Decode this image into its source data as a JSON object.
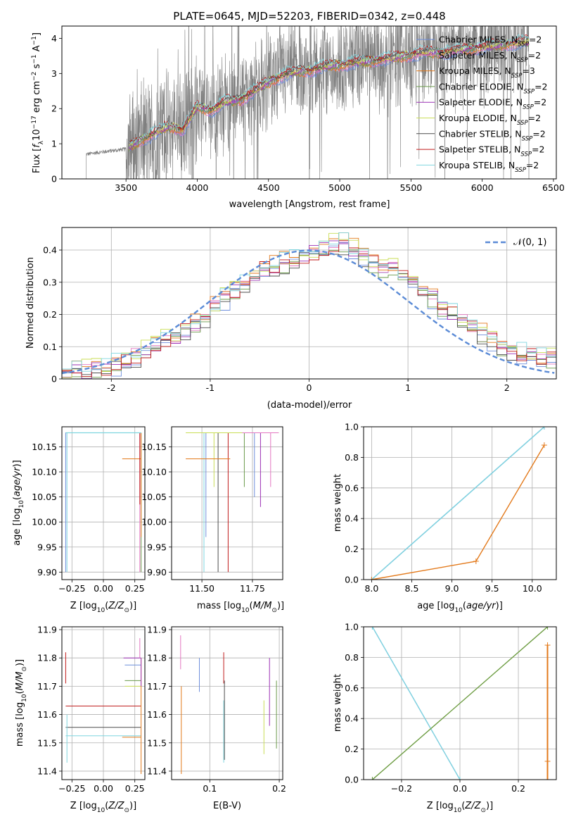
{
  "figure": {
    "title": "PLATE=0645, MJD=52203, FIBERID=0342, z=0.448"
  },
  "colors": {
    "chabrier_miles": "#6f8fdc",
    "salpeter_miles": "#e377c2",
    "kroupa_miles": "#e37a1c",
    "chabrier_elodie": "#6a9a4a",
    "salpeter_elodie": "#9b30b5",
    "kroupa_elodie": "#c9de56",
    "chabrier_stelib": "#4d4d4d",
    "salpeter_stelib": "#c01a1a",
    "kroupa_stelib": "#7fd6df",
    "data_spectrum": "#7f7f7f",
    "normal_curve": "#5b8bd6",
    "grid": "#b0b0b0"
  },
  "chart_data": [
    {
      "id": "spectrum",
      "type": "line",
      "xlabel": "wavelength [Angstrom, rest frame]",
      "ylabel": "Flux [f_λ 10^-17 erg cm^-2 s^-1 A^-1]",
      "xlim": [
        3050,
        6520
      ],
      "ylim": [
        0,
        4.35
      ],
      "xticks": [
        3500,
        4000,
        4500,
        5000,
        5500,
        6000,
        6500
      ],
      "yticks": [
        0,
        1,
        2,
        3,
        4
      ],
      "grid": false,
      "legend_position": "top-right",
      "legend": [
        {
          "label": "Chabrier MILES, N",
          "sub": "SSP",
          "suffix": "=2",
          "color_key": "chabrier_miles"
        },
        {
          "label": "Salpeter MILES, N",
          "sub": "SSP",
          "suffix": "=2",
          "color_key": "salpeter_miles"
        },
        {
          "label": "Kroupa MILES, N",
          "sub": "SSP",
          "suffix": "=3",
          "color_key": "kroupa_miles"
        },
        {
          "label": "Chabrier ELODIE, N",
          "sub": "SSP",
          "suffix": "=2",
          "color_key": "chabrier_elodie"
        },
        {
          "label": "Salpeter ELODIE, N",
          "sub": "SSP",
          "suffix": "=2",
          "color_key": "salpeter_elodie"
        },
        {
          "label": "Kroupa ELODIE, N",
          "sub": "SSP",
          "suffix": "=2",
          "color_key": "kroupa_elodie"
        },
        {
          "label": "Chabrier STELIB, N",
          "sub": "SSP",
          "suffix": "=2",
          "color_key": "chabrier_stelib"
        },
        {
          "label": "Salpeter STELIB, N",
          "sub": "SSP",
          "suffix": "=2",
          "color_key": "salpeter_stelib"
        },
        {
          "label": "Kroupa STELIB, N",
          "sub": "SSP",
          "suffix": "=2",
          "color_key": "kroupa_stelib"
        }
      ],
      "model_continuum": {
        "x": [
          3220,
          3300,
          3400,
          3500,
          3600,
          3700,
          3800,
          3900,
          4000,
          4100,
          4200,
          4300,
          4400,
          4500,
          4600,
          4700,
          4800,
          4900,
          5000,
          5100,
          5200,
          5300,
          5400,
          5500,
          5600,
          5700,
          5800,
          5900,
          6000,
          6100,
          6200,
          6300
        ],
        "y": [
          0.7,
          0.75,
          0.8,
          0.85,
          1.1,
          1.3,
          1.5,
          1.4,
          2.05,
          1.95,
          2.2,
          2.25,
          2.5,
          2.75,
          2.95,
          3.05,
          3.1,
          3.2,
          3.25,
          3.3,
          3.35,
          3.4,
          3.45,
          3.55,
          3.6,
          3.6,
          3.65,
          3.7,
          3.75,
          3.8,
          3.85,
          3.9
        ]
      },
      "data_noise_note": "noisy observed spectrum around the model continuum"
    },
    {
      "id": "residuals",
      "type": "line",
      "xlabel": "(data-model)/error",
      "ylabel": "Normed distribution",
      "xlim": [
        -2.5,
        2.5
      ],
      "ylim": [
        0,
        0.47
      ],
      "xticks": [
        -2,
        -1,
        0,
        1,
        2
      ],
      "yticks": [
        0.0,
        0.1,
        0.2,
        0.3,
        0.4
      ],
      "grid": true,
      "legend_position": "top-right",
      "legend_label": "𝒩(0, 1)",
      "hist_edges": [
        -2.5,
        -2.4,
        -2.3,
        -2.2,
        -2.1,
        -2.0,
        -1.9,
        -1.8,
        -1.7,
        -1.6,
        -1.5,
        -1.4,
        -1.3,
        -1.2,
        -1.1,
        -1.0,
        -0.9,
        -0.8,
        -0.7,
        -0.6,
        -0.5,
        -0.4,
        -0.3,
        -0.2,
        -0.1,
        0.0,
        0.1,
        0.2,
        0.3,
        0.4,
        0.5,
        0.6,
        0.7,
        0.8,
        0.9,
        1.0,
        1.1,
        1.2,
        1.3,
        1.4,
        1.5,
        1.6,
        1.7,
        1.8,
        1.9,
        2.0,
        2.1,
        2.2,
        2.3,
        2.4,
        2.5
      ],
      "hist_base": [
        0.015,
        0.02,
        0.025,
        0.03,
        0.035,
        0.045,
        0.06,
        0.07,
        0.09,
        0.1,
        0.12,
        0.13,
        0.15,
        0.17,
        0.19,
        0.22,
        0.25,
        0.27,
        0.3,
        0.32,
        0.34,
        0.35,
        0.36,
        0.37,
        0.38,
        0.39,
        0.4,
        0.42,
        0.42,
        0.4,
        0.38,
        0.36,
        0.35,
        0.34,
        0.32,
        0.3,
        0.28,
        0.25,
        0.22,
        0.2,
        0.18,
        0.16,
        0.14,
        0.12,
        0.1,
        0.09,
        0.08,
        0.07,
        0.06,
        0.06
      ]
    },
    {
      "id": "age-vs-Z",
      "type": "line",
      "xlabel": "Z [log10(Z/Z⊙)]",
      "ylabel": "age [log10(age/yr)]",
      "xlim": [
        -0.33,
        0.33
      ],
      "ylim": [
        9.885,
        10.19
      ],
      "xticks": [
        -0.25,
        0.0,
        0.25
      ],
      "xtick_labels": [
        "−0.25",
        "0.00",
        "0.25"
      ],
      "yticks": [
        9.9,
        9.95,
        10.0,
        10.05,
        10.1,
        10.15
      ],
      "ytick_labels": [
        "9.90",
        "9.95",
        "10.00",
        "10.05",
        "10.10",
        "10.15"
      ],
      "grid": true
    },
    {
      "id": "age-vs-mass",
      "type": "line",
      "xlabel": "mass [log10(M/M⊙)]",
      "ylabel": "",
      "xlim": [
        11.35,
        11.9
      ],
      "ylim": [
        9.885,
        10.19
      ],
      "xticks": [
        11.5,
        11.75
      ],
      "xtick_labels": [
        "11.50",
        "11.75"
      ],
      "yticks": [
        9.9,
        9.95,
        10.0,
        10.05,
        10.1,
        10.15
      ],
      "ytick_labels": [
        "9.90",
        "9.95",
        "10.00",
        "10.05",
        "10.10",
        "10.15"
      ],
      "grid": true
    },
    {
      "id": "massweight-vs-age",
      "type": "line",
      "xlabel": "age [log10(age/yr)]",
      "ylabel": "mass weight",
      "xlim": [
        7.9,
        10.3
      ],
      "ylim": [
        0,
        1.0
      ],
      "xticks": [
        8.0,
        8.5,
        9.0,
        9.5,
        10.0
      ],
      "xtick_labels": [
        "8.0",
        "8.5",
        "9.0",
        "9.5",
        "10.0"
      ],
      "yticks": [
        0.0,
        0.2,
        0.4,
        0.6,
        0.8,
        1.0
      ],
      "ytick_labels": [
        "0.0",
        "0.2",
        "0.4",
        "0.6",
        "0.8",
        "1.0"
      ],
      "grid": true,
      "series": [
        {
          "color_key": "chabrier_miles",
          "x": [
            8.0,
            10.15
          ],
          "y": [
            0.0,
            1.0
          ]
        },
        {
          "color_key": "kroupa_stelib",
          "x": [
            8.0,
            10.15
          ],
          "y": [
            0.0,
            1.0
          ]
        },
        {
          "color_key": "kroupa_miles",
          "x": [
            8.0,
            9.3,
            10.15
          ],
          "y": [
            0.0,
            0.12,
            0.88
          ]
        }
      ]
    },
    {
      "id": "mass-vs-Z",
      "type": "line",
      "xlabel": "Z [log10(Z/Z⊙)]",
      "ylabel": "mass [log10(M/M⊙)]",
      "xlim": [
        -0.33,
        0.33
      ],
      "ylim": [
        11.37,
        11.91
      ],
      "xticks": [
        -0.25,
        0.0,
        0.25
      ],
      "xtick_labels": [
        "−0.25",
        "0.00",
        "0.25"
      ],
      "yticks": [
        11.4,
        11.5,
        11.6,
        11.7,
        11.8,
        11.9
      ],
      "ytick_labels": [
        "11.4",
        "11.5",
        "11.6",
        "11.7",
        "11.8",
        "11.9"
      ],
      "grid": true
    },
    {
      "id": "mass-vs-EBV",
      "type": "line",
      "xlabel": "E(B-V)",
      "ylabel": "",
      "xlim": [
        0.045,
        0.205
      ],
      "ylim": [
        11.37,
        11.91
      ],
      "xticks": [
        0.1,
        0.2
      ],
      "xtick_labels": [
        "0.1",
        "0.2"
      ],
      "yticks": [
        11.4,
        11.5,
        11.6,
        11.7,
        11.8,
        11.9
      ],
      "ytick_labels": [
        "11.4",
        "11.5",
        "11.6",
        "11.7",
        "11.8",
        "11.9"
      ],
      "grid": true
    },
    {
      "id": "massweight-vs-Z",
      "type": "line",
      "xlabel": "Z [log10(Z/Z⊙)]",
      "ylabel": "mass weight",
      "xlim": [
        -0.33,
        0.33
      ],
      "ylim": [
        0,
        1.0
      ],
      "xticks": [
        -0.2,
        0.0,
        0.2
      ],
      "xtick_labels": [
        "−0.2",
        "0.0",
        "0.2"
      ],
      "yticks": [
        0.0,
        0.2,
        0.4,
        0.6,
        0.8,
        1.0
      ],
      "ytick_labels": [
        "0.0",
        "0.2",
        "0.4",
        "0.6",
        "0.8",
        "1.0"
      ],
      "grid": true,
      "series": [
        {
          "color_key": "chabrier_miles",
          "x": [
            -0.3,
            0.0
          ],
          "y": [
            1.0,
            0.0
          ]
        },
        {
          "color_key": "kroupa_stelib",
          "x": [
            -0.3,
            0.0
          ],
          "y": [
            1.0,
            0.0
          ]
        },
        {
          "color_key": "kroupa_elodie",
          "x": [
            -0.3,
            0.3
          ],
          "y": [
            0.0,
            1.0
          ]
        },
        {
          "color_key": "chabrier_elodie",
          "x": [
            -0.3,
            0.3
          ],
          "y": [
            0.0,
            1.0
          ]
        },
        {
          "color_key": "kroupa_miles",
          "x": [
            0.3,
            0.3,
            0.3
          ],
          "y": [
            0.0,
            0.12,
            0.88
          ]
        }
      ]
    }
  ]
}
